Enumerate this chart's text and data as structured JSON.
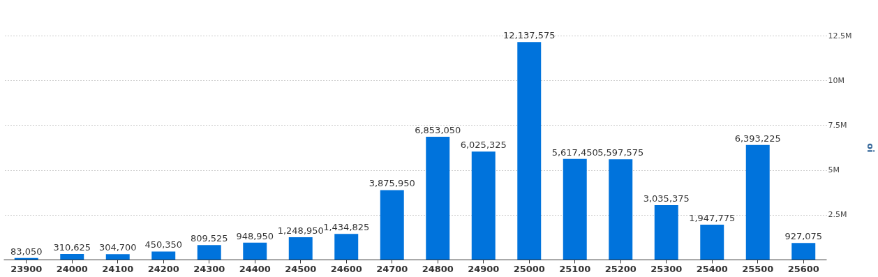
{
  "chart_data": {
    "type": "bar",
    "ylabel": "oi",
    "categories": [
      "23900",
      "24000",
      "24100",
      "24200",
      "24300",
      "24400",
      "24500",
      "24600",
      "24700",
      "24800",
      "24900",
      "25000",
      "25100",
      "25200",
      "25300",
      "25400",
      "25500",
      "25600"
    ],
    "values": [
      83050,
      310625,
      304700,
      450350,
      809525,
      948950,
      1248950,
      1434825,
      3875950,
      6853050,
      6025325,
      12137575,
      5617450,
      5597575,
      3035375,
      1947775,
      6393225,
      927075
    ],
    "color": "#0073dc",
    "ylim": [
      0,
      12500000
    ],
    "yticks": [
      {
        "value": 2500000,
        "label": "2.5M"
      },
      {
        "value": 5000000,
        "label": "5M"
      },
      {
        "value": 7500000,
        "label": "7.5M"
      },
      {
        "value": 10000000,
        "label": "10M"
      },
      {
        "value": 12500000,
        "label": "12.5M"
      }
    ],
    "value_labels": [
      "83,050",
      "310,625",
      "304,700",
      "450,350",
      "809,525",
      "948,950",
      "1,248,950",
      "1,434,825",
      "3,875,950",
      "6,853,050",
      "6,025,325",
      "12,137,575",
      "5,617,450",
      "5,597,575",
      "3,035,375",
      "1,947,775",
      "6,393,225",
      "927,075"
    ],
    "grid": "y"
  }
}
